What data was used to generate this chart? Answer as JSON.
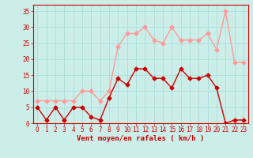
{
  "x": [
    0,
    1,
    2,
    3,
    4,
    5,
    6,
    7,
    8,
    9,
    10,
    11,
    12,
    13,
    14,
    15,
    16,
    17,
    18,
    19,
    20,
    21,
    22,
    23
  ],
  "wind_avg": [
    5,
    1,
    5,
    1,
    5,
    5,
    2,
    1,
    8,
    14,
    12,
    17,
    17,
    14,
    14,
    11,
    17,
    14,
    14,
    15,
    11,
    0,
    1,
    1
  ],
  "wind_gust": [
    7,
    7,
    7,
    7,
    7,
    10,
    10,
    7,
    10,
    24,
    28,
    28,
    30,
    26,
    25,
    30,
    26,
    26,
    26,
    28,
    23,
    35,
    19,
    19
  ],
  "avg_color": "#cc0000",
  "gust_color": "#ff9999",
  "bg_color": "#cceee8",
  "grid_color": "#aadddd",
  "xlabel": "Vent moyen/en rafales ( km/h )",
  "ylim": [
    0,
    37
  ],
  "xlim": [
    -0.5,
    23.5
  ],
  "yticks": [
    0,
    5,
    10,
    15,
    20,
    25,
    30,
    35
  ],
  "xticks": [
    0,
    1,
    2,
    3,
    4,
    5,
    6,
    7,
    8,
    9,
    10,
    11,
    12,
    13,
    14,
    15,
    16,
    17,
    18,
    19,
    20,
    21,
    22,
    23
  ],
  "label_fontsize": 6.5,
  "tick_fontsize": 5.5,
  "line_width": 1.0,
  "marker_size": 2.5
}
